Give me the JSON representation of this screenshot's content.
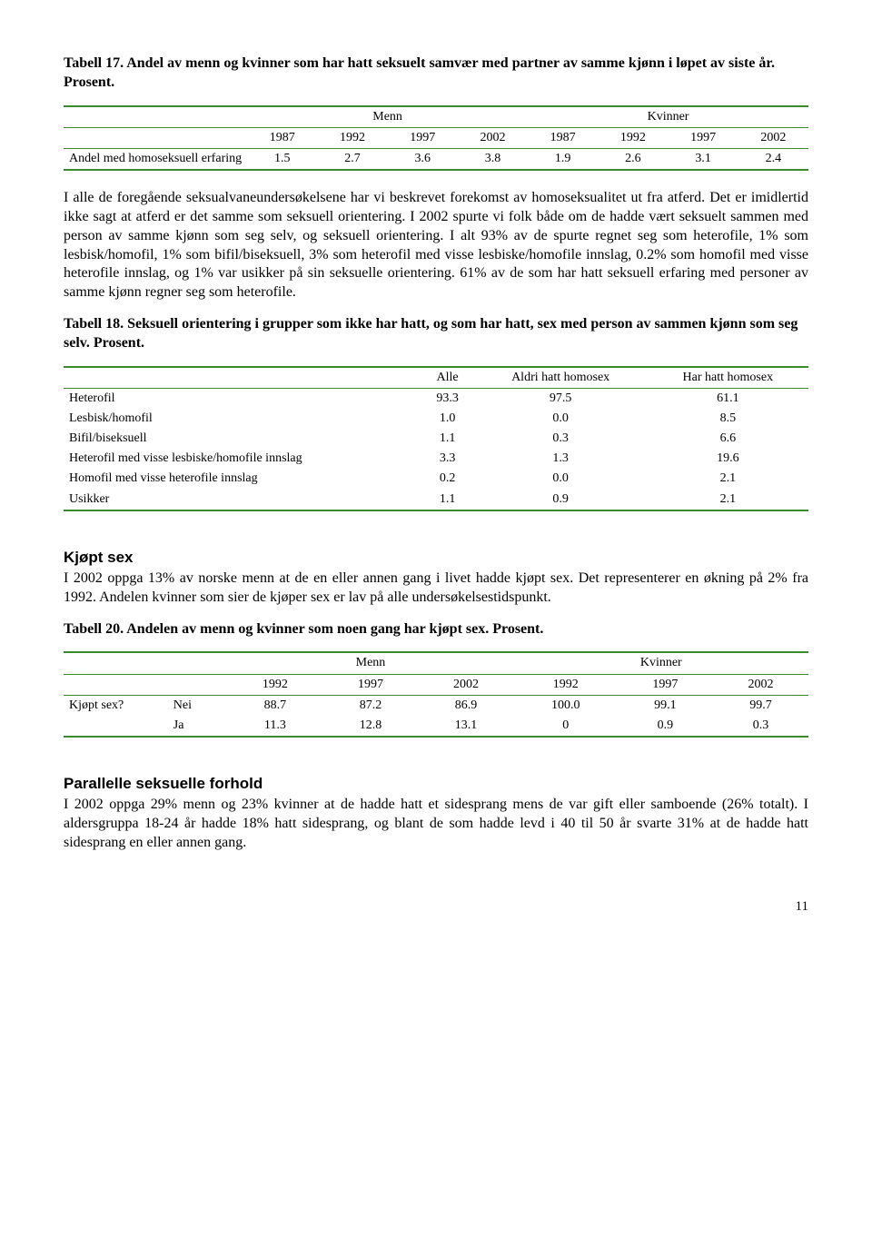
{
  "table17": {
    "title": "Tabell 17. Andel av menn og kvinner som har hatt seksuelt samvær med partner av samme kjønn i løpet av siste år. Prosent.",
    "group_headers": [
      "Menn",
      "Kvinner"
    ],
    "years": [
      "1987",
      "1992",
      "1997",
      "2002",
      "1987",
      "1992",
      "1997",
      "2002"
    ],
    "row_label": "Andel med homoseksuell erfaring",
    "values": [
      "1.5",
      "2.7",
      "3.6",
      "3.8",
      "1.9",
      "2.6",
      "3.1",
      "2.4"
    ]
  },
  "para1": "I alle de foregående seksualvaneundersøkelsene har vi beskrevet forekomst av homoseksualitet ut fra atferd. Det er imidlertid ikke sagt at atferd er det samme som seksuell orientering. I 2002 spurte vi folk både om de hadde vært seksuelt sammen med person av samme kjønn som seg selv, og seksuell orientering. I alt 93% av de spurte regnet seg som heterofile, 1% som lesbisk/homofil, 1% som bifil/biseksuell, 3% som heterofil med visse lesbiske/homofile innslag, 0.2% som homofil med visse heterofile innslag, og 1% var usikker på sin seksuelle orientering. 61% av de som har hatt seksuell erfaring med personer av samme kjønn regner seg som heterofile.",
  "table18": {
    "title": "Tabell 18. Seksuell orientering i grupper som ikke har hatt, og som har hatt, sex med person av sammen kjønn som seg selv. Prosent.",
    "columns": [
      "Alle",
      "Aldri hatt homosex",
      "Har hatt homosex"
    ],
    "rows": [
      {
        "label": "Heterofil",
        "vals": [
          "93.3",
          "97.5",
          "61.1"
        ]
      },
      {
        "label": "Lesbisk/homofil",
        "vals": [
          "1.0",
          "0.0",
          "8.5"
        ]
      },
      {
        "label": "Bifil/biseksuell",
        "vals": [
          "1.1",
          "0.3",
          "6.6"
        ]
      },
      {
        "label": "Heterofil med visse lesbiske/homofile innslag",
        "vals": [
          "3.3",
          "1.3",
          "19.6"
        ]
      },
      {
        "label": "Homofil med visse heterofile innslag",
        "vals": [
          "0.2",
          "0.0",
          "2.1"
        ]
      },
      {
        "label": "Usikker",
        "vals": [
          "1.1",
          "0.9",
          "2.1"
        ]
      }
    ]
  },
  "kjopt": {
    "heading": "Kjøpt sex",
    "para": "I 2002 oppga 13% av norske menn at de en eller annen gang i livet hadde kjøpt sex. Det representerer en økning på 2% fra 1992. Andelen kvinner som sier de kjøper sex er lav på alle undersøkelsestidspunkt."
  },
  "table20": {
    "title": "Tabell 20. Andelen av menn og kvinner som noen gang har kjøpt sex. Prosent.",
    "group_headers": [
      "Menn",
      "Kvinner"
    ],
    "years": [
      "1992",
      "1997",
      "2002",
      "1992",
      "1997",
      "2002"
    ],
    "row_label": "Kjøpt sex?",
    "rows": [
      {
        "sub": "Nei",
        "vals": [
          "88.7",
          "87.2",
          "86.9",
          "100.0",
          "99.1",
          "99.7"
        ]
      },
      {
        "sub": "Ja",
        "vals": [
          "11.3",
          "12.8",
          "13.1",
          "0",
          "0.9",
          "0.3"
        ]
      }
    ]
  },
  "parallelle": {
    "heading": "Parallelle seksuelle forhold",
    "para": "I 2002 oppga 29% menn og 23% kvinner at de hadde hatt et sidesprang mens de var gift eller samboende (26% totalt). I aldersgruppa 18-24 år hadde 18% hatt sidesprang, og blant de som hadde levd i 40 til 50 år svarte 31% at de hadde hatt sidesprang en eller annen gang."
  },
  "page_number": "11"
}
